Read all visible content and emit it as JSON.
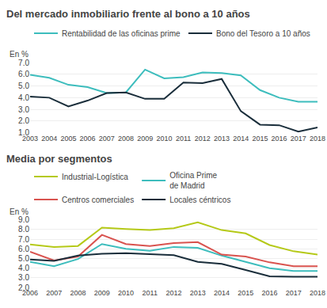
{
  "chart_data": [
    {
      "type": "line",
      "title": "Del mercado inmobiliario frente al bono a 10 años",
      "ylabel": "En %",
      "x": [
        2003,
        2004,
        2005,
        2006,
        2007,
        2008,
        2009,
        2010,
        2011,
        2012,
        2013,
        2014,
        2015,
        2016,
        2017,
        2018
      ],
      "series": [
        {
          "name": "Rentabilidad de las oficinas prime",
          "color": "#3dbdbd",
          "values": [
            5.95,
            5.7,
            5.1,
            4.9,
            4.4,
            4.45,
            6.4,
            5.65,
            5.75,
            6.15,
            6.1,
            5.9,
            4.65,
            4.0,
            3.65,
            3.65
          ]
        },
        {
          "name": "Bono del Tesoro a 10 años",
          "color": "#1a2e3b",
          "values": [
            4.1,
            4.0,
            3.25,
            3.75,
            4.4,
            4.45,
            3.9,
            3.9,
            5.3,
            5.25,
            5.6,
            2.85,
            1.7,
            1.65,
            1.1,
            1.45
          ]
        }
      ],
      "xlim": [
        2003,
        2018
      ],
      "xticks": [
        2003,
        2004,
        2005,
        2006,
        2007,
        2008,
        2009,
        2010,
        2011,
        2012,
        2013,
        2014,
        2015,
        2016,
        2017,
        2018
      ],
      "ylim": [
        1.0,
        7.0
      ],
      "yticks": [
        {
          "value": 1.0,
          "label": "1.0"
        },
        {
          "value": 2.0,
          "label": "2.0"
        },
        {
          "value": 3.0,
          "label": "3.0"
        },
        {
          "value": 4.0,
          "label": "4.0"
        },
        {
          "value": 5.0,
          "label": "5.0"
        },
        {
          "value": 6.0,
          "label": "6.0"
        },
        {
          "value": 7.0,
          "label": "7.0"
        }
      ],
      "grid": true,
      "legend": "top"
    },
    {
      "type": "line",
      "title": "Media por segmentos",
      "ylabel": "En %",
      "x": [
        2006,
        2007,
        2008,
        2009,
        2010,
        2011,
        2012,
        2013,
        2014,
        2015,
        2016,
        2017,
        2018
      ],
      "series": [
        {
          "name": "Industrial-Logística",
          "color": "#b5c918",
          "values": [
            6.45,
            6.2,
            6.3,
            8.2,
            8.05,
            7.95,
            8.15,
            8.75,
            7.95,
            7.6,
            6.4,
            5.75,
            5.4
          ]
        },
        {
          "name": "Oficina Prime\nde Madrid",
          "color": "#3dbdbd",
          "values": [
            4.65,
            4.2,
            4.95,
            6.5,
            6.0,
            5.8,
            6.2,
            6.1,
            5.3,
            4.65,
            4.0,
            3.7,
            3.7
          ]
        },
        {
          "name": "Centros comerciales",
          "color": "#d9534f",
          "values": [
            5.7,
            4.8,
            5.2,
            7.45,
            6.5,
            6.3,
            6.6,
            6.7,
            5.4,
            5.2,
            4.6,
            4.2,
            4.2
          ]
        },
        {
          "name": "Locales céntricos",
          "color": "#1a2e3b",
          "values": [
            4.9,
            4.75,
            5.3,
            5.5,
            5.55,
            5.45,
            5.35,
            4.65,
            4.45,
            3.8,
            3.15,
            3.1,
            3.1
          ]
        }
      ],
      "xlim": [
        2006,
        2018
      ],
      "xticks": [
        2006,
        2007,
        2008,
        2009,
        2010,
        2011,
        2012,
        2013,
        2014,
        2015,
        2016,
        2017,
        2018
      ],
      "ylim": [
        2.0,
        9.0
      ],
      "yticks": [
        {
          "value": 2.0,
          "label": "2.0"
        },
        {
          "value": 3.0,
          "label": "3.0"
        },
        {
          "value": 4.0,
          "label": "4.0"
        },
        {
          "value": 5.0,
          "label": "5.0"
        },
        {
          "value": 6.0,
          "label": "6.0"
        },
        {
          "value": 7.0,
          "label": "7.0"
        },
        {
          "value": 8.0,
          "label": "8.0"
        },
        {
          "value": 9.0,
          "label": "9.0"
        }
      ],
      "grid": true,
      "legend": "top"
    }
  ]
}
